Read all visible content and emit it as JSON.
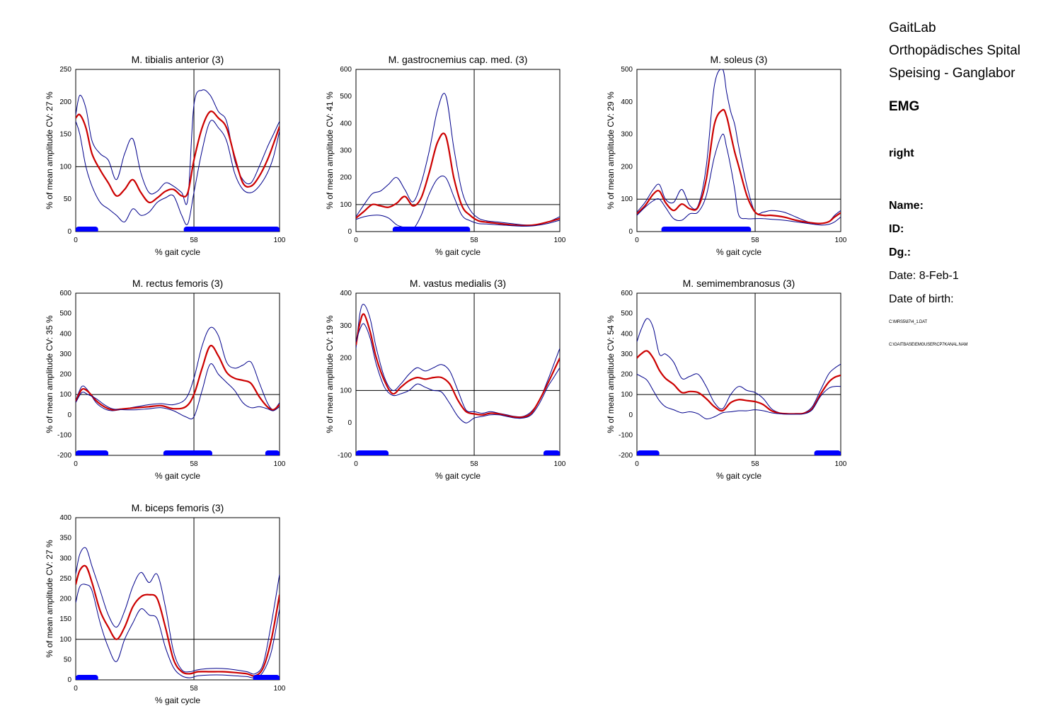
{
  "header": {
    "lab_lines": [
      "GaitLab",
      "Orthopädisches Spital",
      "Speising - Ganglabor"
    ],
    "section": "EMG",
    "side": "right",
    "name_label": "Name:",
    "id_label": "ID:",
    "dg_label": "Dg.:",
    "date_label": "Date:",
    "date_value": "8-Feb-1",
    "dob_label": "Date of birth:",
    "file_path_1": "C:\\MRS5\\87\\4_1.DAT",
    "file_path_2": "C:\\GAITBASE\\EMGUSER\\CP7KANAL.NAM"
  },
  "colors": {
    "mean": "#cc0000",
    "band": "#00008b",
    "activity": "#0000ff",
    "grid": "#000000"
  },
  "chart_data": [
    {
      "type": "line",
      "title": "M. tibialis anterior (3)",
      "xlabel": "% gait cycle",
      "ylabel": "% of mean amplitude  CV: 27 %",
      "xlim": [
        0,
        100
      ],
      "ylim": [
        0,
        250
      ],
      "xticks": [
        0,
        58,
        100
      ],
      "yticks": [
        0,
        50,
        100,
        150,
        200,
        250
      ],
      "ref_x": 58,
      "ref_y": 100,
      "activity": [
        [
          0,
          11
        ],
        [
          53,
          100
        ]
      ],
      "x": [
        0,
        2,
        5,
        8,
        12,
        16,
        20,
        24,
        28,
        32,
        36,
        40,
        44,
        48,
        52,
        55,
        58,
        62,
        66,
        70,
        74,
        78,
        82,
        86,
        90,
        94,
        97,
        100
      ],
      "series": [
        {
          "role": "upper",
          "values": [
            180,
            210,
            190,
            140,
            120,
            110,
            80,
            120,
            143,
            90,
            60,
            62,
            75,
            70,
            60,
            50,
            195,
            218,
            210,
            185,
            170,
            110,
            80,
            75,
            100,
            130,
            150,
            170
          ]
        },
        {
          "role": "mean",
          "values": [
            175,
            180,
            160,
            120,
            95,
            75,
            55,
            65,
            80,
            60,
            45,
            52,
            62,
            65,
            55,
            60,
            110,
            160,
            185,
            175,
            160,
            115,
            75,
            70,
            85,
            110,
            135,
            162
          ]
        },
        {
          "role": "lower",
          "values": [
            170,
            150,
            100,
            70,
            45,
            35,
            25,
            15,
            35,
            25,
            30,
            45,
            52,
            55,
            25,
            12,
            60,
            125,
            170,
            160,
            140,
            90,
            65,
            60,
            70,
            90,
            115,
            155
          ]
        }
      ]
    },
    {
      "type": "line",
      "title": "M. gastrocnemius cap. med. (3)",
      "xlabel": "% gait cycle",
      "ylabel": "% of mean amplitude  CV: 41 %",
      "xlim": [
        0,
        100
      ],
      "ylim": [
        0,
        600
      ],
      "xticks": [
        0,
        58,
        100
      ],
      "yticks": [
        0,
        100,
        200,
        300,
        400,
        500,
        600
      ],
      "ref_x": 58,
      "ref_y": 100,
      "activity": [
        [
          18,
          56
        ]
      ],
      "x": [
        0,
        4,
        8,
        12,
        16,
        20,
        24,
        28,
        32,
        36,
        40,
        44,
        48,
        52,
        56,
        60,
        64,
        70,
        76,
        82,
        88,
        94,
        100
      ],
      "series": [
        {
          "role": "upper",
          "values": [
            55,
            100,
            140,
            150,
            175,
            200,
            155,
            110,
            180,
            300,
            450,
            505,
            310,
            150,
            80,
            50,
            40,
            35,
            30,
            25,
            25,
            35,
            55
          ]
        },
        {
          "role": "mean",
          "values": [
            50,
            75,
            100,
            95,
            90,
            105,
            130,
            95,
            125,
            220,
            330,
            355,
            200,
            95,
            60,
            40,
            35,
            30,
            25,
            22,
            25,
            35,
            48
          ]
        },
        {
          "role": "lower",
          "values": [
            45,
            55,
            60,
            60,
            50,
            25,
            15,
            10,
            60,
            140,
            195,
            200,
            130,
            60,
            40,
            30,
            28,
            25,
            22,
            20,
            22,
            30,
            42
          ]
        }
      ]
    },
    {
      "type": "line",
      "title": "M. soleus (3)",
      "xlabel": "% gait cycle",
      "ylabel": "% of mean amplitude  CV: 29 %",
      "xlim": [
        0,
        100
      ],
      "ylim": [
        0,
        500
      ],
      "xticks": [
        0,
        58,
        100
      ],
      "yticks": [
        0,
        100,
        200,
        300,
        400,
        500
      ],
      "ref_x": 58,
      "ref_y": 100,
      "activity": [
        [
          12,
          56
        ]
      ],
      "x": [
        0,
        4,
        8,
        11,
        14,
        18,
        22,
        26,
        30,
        34,
        38,
        42,
        44,
        46,
        48,
        50,
        54,
        58,
        62,
        66,
        72,
        78,
        84,
        90,
        94,
        97,
        100
      ],
      "series": [
        {
          "role": "upper",
          "values": [
            60,
            90,
            130,
            145,
            100,
            90,
            130,
            80,
            80,
            200,
            450,
            500,
            430,
            370,
            330,
            260,
            140,
            60,
            60,
            65,
            60,
            45,
            30,
            25,
            30,
            50,
            65
          ]
        },
        {
          "role": "mean",
          "values": [
            55,
            80,
            115,
            125,
            90,
            65,
            85,
            70,
            75,
            160,
            330,
            375,
            355,
            300,
            245,
            200,
            110,
            60,
            50,
            50,
            45,
            35,
            28,
            25,
            30,
            45,
            58
          ]
        },
        {
          "role": "lower",
          "values": [
            50,
            75,
            95,
            100,
            75,
            40,
            35,
            55,
            60,
            110,
            230,
            300,
            260,
            200,
            130,
            50,
            40,
            40,
            40,
            38,
            35,
            30,
            25,
            20,
            22,
            30,
            45
          ]
        }
      ]
    },
    {
      "type": "line",
      "title": "M. rectus femoris (3)",
      "xlabel": "% gait cycle",
      "ylabel": "% of mean amplitude  CV: 35 %",
      "xlim": [
        0,
        100
      ],
      "ylim": [
        -200,
        600
      ],
      "xticks": [
        0,
        58,
        100
      ],
      "yticks": [
        -200,
        -100,
        0,
        100,
        200,
        300,
        400,
        500,
        600
      ],
      "ref_x": 58,
      "ref_y": 100,
      "activity": [
        [
          0,
          16
        ],
        [
          43,
          67
        ],
        [
          93,
          100
        ]
      ],
      "x": [
        0,
        3,
        6,
        10,
        14,
        18,
        24,
        30,
        36,
        42,
        48,
        54,
        58,
        62,
        66,
        70,
        74,
        78,
        82,
        86,
        90,
        94,
        97,
        100
      ],
      "series": [
        {
          "role": "upper",
          "values": [
            70,
            140,
            120,
            60,
            30,
            20,
            30,
            40,
            50,
            55,
            50,
            80,
            180,
            340,
            430,
            390,
            260,
            230,
            245,
            260,
            160,
            60,
            25,
            60
          ]
        },
        {
          "role": "mean",
          "values": [
            65,
            125,
            115,
            70,
            40,
            25,
            30,
            35,
            40,
            45,
            30,
            40,
            100,
            230,
            340,
            290,
            210,
            180,
            170,
            155,
            90,
            40,
            25,
            50
          ]
        },
        {
          "role": "lower",
          "values": [
            60,
            110,
            100,
            80,
            50,
            30,
            25,
            25,
            30,
            35,
            20,
            -10,
            -10,
            120,
            250,
            200,
            160,
            120,
            60,
            35,
            40,
            30,
            20,
            40
          ]
        }
      ]
    },
    {
      "type": "line",
      "title": "M. vastus medialis (3)",
      "xlabel": "% gait cycle",
      "ylabel": "% of mean amplitude  CV: 19 %",
      "xlim": [
        0,
        100
      ],
      "ylim": [
        -100,
        400
      ],
      "xticks": [
        0,
        58,
        100
      ],
      "yticks": [
        -100,
        0,
        100,
        200,
        300,
        400
      ],
      "ref_x": 58,
      "ref_y": 100,
      "activity": [
        [
          0,
          16
        ],
        [
          92,
          100
        ]
      ],
      "x": [
        0,
        2,
        4,
        7,
        10,
        14,
        18,
        22,
        26,
        30,
        34,
        38,
        42,
        46,
        50,
        54,
        58,
        62,
        66,
        70,
        74,
        78,
        82,
        86,
        90,
        94,
        97,
        100
      ],
      "series": [
        {
          "role": "upper",
          "values": [
            230,
            340,
            365,
            320,
            230,
            140,
            100,
            120,
            150,
            170,
            160,
            170,
            180,
            160,
            100,
            40,
            35,
            30,
            35,
            30,
            25,
            20,
            20,
            35,
            70,
            130,
            180,
            230
          ]
        },
        {
          "role": "mean",
          "values": [
            240,
            310,
            335,
            280,
            200,
            130,
            90,
            110,
            130,
            140,
            135,
            140,
            140,
            120,
            70,
            35,
            28,
            25,
            30,
            28,
            22,
            18,
            18,
            30,
            70,
            120,
            160,
            200
          ]
        },
        {
          "role": "lower",
          "values": [
            250,
            290,
            305,
            260,
            180,
            110,
            85,
            90,
            100,
            120,
            110,
            100,
            95,
            60,
            20,
            0,
            15,
            20,
            25,
            25,
            20,
            15,
            15,
            25,
            60,
            110,
            140,
            170
          ]
        }
      ]
    },
    {
      "type": "line",
      "title": "M. semimembranosus (3)",
      "xlabel": "% gait cycle",
      "ylabel": "% of mean amplitude  CV: 54 %",
      "xlim": [
        0,
        100
      ],
      "ylim": [
        -200,
        600
      ],
      "xticks": [
        0,
        58,
        100
      ],
      "yticks": [
        -200,
        -100,
        0,
        100,
        200,
        300,
        400,
        500,
        600
      ],
      "ref_x": 58,
      "ref_y": 100,
      "activity": [
        [
          0,
          11
        ],
        [
          87,
          100
        ]
      ],
      "x": [
        0,
        2,
        5,
        8,
        11,
        14,
        18,
        22,
        26,
        30,
        34,
        38,
        42,
        46,
        50,
        54,
        58,
        62,
        66,
        70,
        74,
        78,
        82,
        86,
        90,
        94,
        97,
        100
      ],
      "series": [
        {
          "role": "upper",
          "values": [
            360,
            420,
            475,
            430,
            300,
            300,
            260,
            180,
            190,
            200,
            140,
            60,
            30,
            100,
            140,
            120,
            110,
            80,
            30,
            10,
            5,
            5,
            10,
            40,
            120,
            200,
            230,
            250
          ]
        },
        {
          "role": "mean",
          "values": [
            280,
            300,
            315,
            280,
            220,
            180,
            150,
            110,
            115,
            110,
            80,
            40,
            20,
            60,
            75,
            70,
            65,
            50,
            20,
            8,
            5,
            5,
            8,
            30,
            100,
            160,
            185,
            195
          ]
        },
        {
          "role": "lower",
          "values": [
            200,
            190,
            170,
            120,
            70,
            40,
            25,
            10,
            15,
            5,
            -20,
            -10,
            10,
            15,
            20,
            20,
            25,
            20,
            10,
            5,
            3,
            3,
            5,
            25,
            90,
            130,
            140,
            140
          ]
        }
      ]
    },
    {
      "type": "line",
      "title": "M. biceps femoris (3)",
      "xlabel": "% gait cycle",
      "ylabel": "% of mean amplitude  CV: 27 %",
      "xlim": [
        0,
        100
      ],
      "ylim": [
        0,
        400
      ],
      "xticks": [
        0,
        58,
        100
      ],
      "yticks": [
        0,
        50,
        100,
        150,
        200,
        250,
        300,
        350,
        400
      ],
      "ref_x": 58,
      "ref_y": 100,
      "activity": [
        [
          0,
          11
        ],
        [
          87,
          100
        ]
      ],
      "x": [
        0,
        2,
        5,
        8,
        12,
        16,
        20,
        24,
        28,
        32,
        36,
        40,
        44,
        48,
        52,
        56,
        60,
        66,
        72,
        78,
        84,
        88,
        92,
        96,
        100
      ],
      "series": [
        {
          "role": "upper",
          "values": [
            260,
            310,
            325,
            280,
            220,
            160,
            130,
            170,
            230,
            265,
            240,
            260,
            180,
            70,
            25,
            20,
            25,
            28,
            28,
            25,
            20,
            15,
            40,
            140,
            260
          ]
        },
        {
          "role": "mean",
          "values": [
            235,
            270,
            280,
            240,
            170,
            130,
            100,
            130,
            180,
            205,
            210,
            200,
            130,
            50,
            20,
            15,
            20,
            20,
            20,
            18,
            15,
            10,
            30,
            100,
            210
          ]
        },
        {
          "role": "lower",
          "values": [
            190,
            230,
            235,
            220,
            140,
            80,
            45,
            100,
            140,
            175,
            160,
            150,
            80,
            30,
            10,
            5,
            10,
            12,
            12,
            10,
            8,
            5,
            20,
            70,
            175
          ]
        }
      ]
    }
  ]
}
